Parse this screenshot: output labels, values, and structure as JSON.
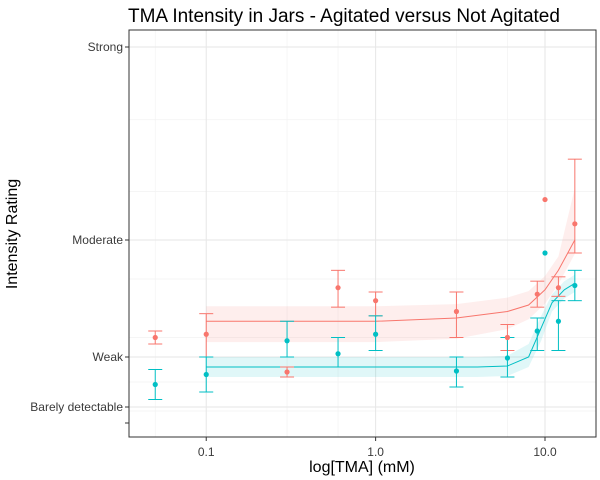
{
  "chart_data": {
    "type": "scatter",
    "title": "TMA Intensity in Jars - Agitated versus Not Agitated",
    "xlabel": "log[TMA] (mM)",
    "ylabel": "Intensity Rating",
    "x_scale": "log10",
    "xlim": [
      0.035,
      20
    ],
    "ylim": [
      -0.3,
      6.3
    ],
    "x_ticks": [
      {
        "value": 0.1,
        "label": "0.1"
      },
      {
        "value": 1.0,
        "label": "1.0"
      },
      {
        "value": 10.0,
        "label": "10.0"
      }
    ],
    "y_ticks": [
      {
        "value": 0.2,
        "label": "Barely detectable"
      },
      {
        "value": 1.2,
        "label": "Weak"
      },
      {
        "value": 3.6,
        "label": "Moderate"
      },
      {
        "value": 7.5,
        "label": "Strong"
      }
    ],
    "grid": true,
    "legend": "none",
    "series": [
      {
        "color": "#F8766D",
        "points": [
          {
            "x": 0.05,
            "y": 1.5,
            "lo": 1.4,
            "hi": 1.6
          },
          {
            "x": 0.1,
            "y": 1.55,
            "lo": 1.2,
            "hi": 1.9
          },
          {
            "x": 0.3,
            "y": 0.9,
            "lo": 0.8,
            "hi": 1.0
          },
          {
            "x": 0.6,
            "y": 2.5,
            "lo": 2.05,
            "hi": 2.9
          },
          {
            "x": 1.0,
            "y": 2.2,
            "lo": 1.85,
            "hi": 2.4
          },
          {
            "x": 3.0,
            "y": 1.95,
            "lo": 1.5,
            "hi": 2.4
          },
          {
            "x": 6.0,
            "y": 1.5,
            "lo": 1.3,
            "hi": 1.7
          },
          {
            "x": 9.0,
            "y": 2.35,
            "lo": 2.05,
            "hi": 2.65
          },
          {
            "x": 10.0,
            "y": 3.85
          },
          {
            "x": 12.0,
            "y": 2.5,
            "lo": 2.3,
            "hi": 2.75
          },
          {
            "x": 15.0,
            "y": 3.7,
            "lo": 3.3,
            "hi": 4.1
          }
        ],
        "fit": [
          {
            "x": 0.1,
            "y": 1.75
          },
          {
            "x": 1.0,
            "y": 1.75
          },
          {
            "x": 3.0,
            "y": 1.8
          },
          {
            "x": 6.0,
            "y": 1.95
          },
          {
            "x": 8.0,
            "y": 2.1
          },
          {
            "x": 10.0,
            "y": 2.45
          },
          {
            "x": 12.0,
            "y": 2.9
          },
          {
            "x": 15.0,
            "y": 3.6
          }
        ],
        "band_width": 0.32
      },
      {
        "color": "#00BFC4",
        "points": [
          {
            "x": 0.05,
            "y": 0.65,
            "lo": 0.35,
            "hi": 0.95
          },
          {
            "x": 0.1,
            "y": 0.85,
            "lo": 0.5,
            "hi": 1.2
          },
          {
            "x": 0.3,
            "y": 1.45,
            "lo": 1.2,
            "hi": 1.75
          },
          {
            "x": 0.6,
            "y": 1.25,
            "lo": 1.0,
            "hi": 1.5
          },
          {
            "x": 1.0,
            "y": 1.55,
            "lo": 1.3,
            "hi": 1.85
          },
          {
            "x": 3.0,
            "y": 0.92,
            "lo": 0.6,
            "hi": 1.2
          },
          {
            "x": 6.0,
            "y": 1.18,
            "lo": 0.8,
            "hi": 1.5
          },
          {
            "x": 9.0,
            "y": 1.6,
            "lo": 1.3,
            "hi": 1.8
          },
          {
            "x": 10.0,
            "y": 3.3
          },
          {
            "x": 12.0,
            "y": 1.75,
            "lo": 1.3,
            "hi": 2.2
          },
          {
            "x": 15.0,
            "y": 2.55,
            "lo": 2.2,
            "hi": 2.9
          }
        ],
        "fit": [
          {
            "x": 0.1,
            "y": 1.0
          },
          {
            "x": 1.0,
            "y": 1.0
          },
          {
            "x": 4.0,
            "y": 1.0
          },
          {
            "x": 6.0,
            "y": 1.02
          },
          {
            "x": 8.0,
            "y": 1.2
          },
          {
            "x": 9.5,
            "y": 1.65
          },
          {
            "x": 11.0,
            "y": 2.15
          },
          {
            "x": 13.0,
            "y": 2.45
          },
          {
            "x": 15.0,
            "y": 2.6
          }
        ],
        "band_width": 0.2
      }
    ]
  }
}
